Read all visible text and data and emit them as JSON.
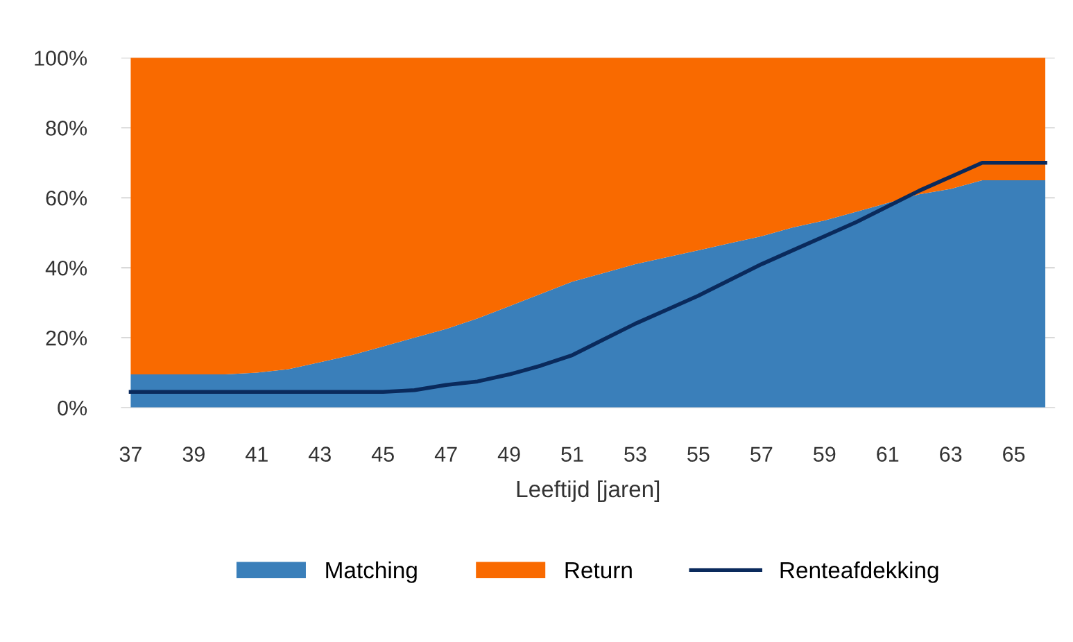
{
  "chart_data": {
    "type": "area",
    "stacked": true,
    "xlabel": "Leeftijd [jaren]",
    "categories": [
      "37",
      null,
      "39",
      null,
      "41",
      null,
      "43",
      null,
      "45",
      null,
      "47",
      null,
      "49",
      null,
      "51",
      null,
      "53",
      null,
      "55",
      null,
      "57",
      null,
      "59",
      null,
      "61",
      null,
      "63",
      null,
      "65",
      null
    ],
    "series": [
      {
        "name": "Matching",
        "color": "#3a7fba",
        "values": [
          9.5,
          9.5,
          9.5,
          9.5,
          10,
          11,
          13,
          15,
          17.5,
          20,
          22.5,
          25.5,
          29,
          32.5,
          36,
          38.5,
          41,
          43,
          45,
          47,
          49,
          51.5,
          53.5,
          56,
          58.5,
          61,
          62.5,
          65,
          65,
          65
        ]
      },
      {
        "name": "Return",
        "color": "#f96a00",
        "values": [
          90.5,
          90.5,
          90.5,
          90.5,
          90,
          89,
          87,
          85,
          82.5,
          80,
          77.5,
          74.5,
          71,
          67.5,
          64,
          61.5,
          59,
          57,
          55,
          53,
          51,
          48.5,
          46.5,
          44,
          41.5,
          39,
          37.5,
          35,
          35,
          35
        ]
      },
      {
        "name": "Renteafdekking",
        "type": "line",
        "color": "#0a2a5c",
        "values": [
          4.5,
          4.5,
          4.5,
          4.5,
          4.5,
          4.5,
          4.5,
          4.5,
          4.5,
          5,
          6.5,
          7.5,
          9.5,
          12,
          15,
          19.5,
          24,
          28,
          32,
          36.5,
          41,
          45,
          49,
          53,
          57.5,
          62,
          66,
          70,
          70,
          70
        ]
      }
    ],
    "ylim": [
      0,
      100
    ],
    "yticks": [
      {
        "value": 0,
        "label": "0%"
      },
      {
        "value": 20,
        "label": "20%"
      },
      {
        "value": 40,
        "label": "40%"
      },
      {
        "value": 60,
        "label": "60%"
      },
      {
        "value": 80,
        "label": "80%"
      },
      {
        "value": 100,
        "label": "100%"
      }
    ],
    "grid": "y",
    "legend": "bottom"
  }
}
